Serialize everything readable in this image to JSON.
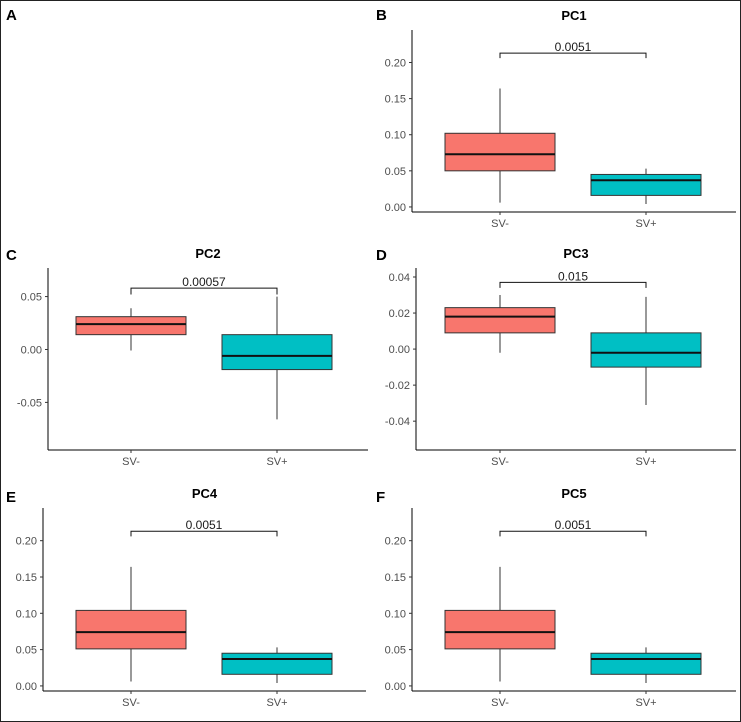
{
  "chart_data": [
    {
      "panel": "A",
      "type": "blank"
    },
    {
      "panel": "B",
      "type": "boxplot",
      "title": "PC1",
      "categories": [
        "SV-",
        "SV+"
      ],
      "ylim": [
        -0.007,
        0.245
      ],
      "yticks": [
        0.0,
        0.05,
        0.1,
        0.15,
        0.2
      ],
      "ytick_labels": [
        "0.00",
        "0.05",
        "0.10",
        "0.15",
        "0.20"
      ],
      "boxes": [
        {
          "category": "SV-",
          "whisker_low": 0.006,
          "q1": 0.05,
          "median": 0.073,
          "q3": 0.102,
          "whisker_high": 0.164,
          "color": "#F8766D"
        },
        {
          "category": "SV+",
          "whisker_low": 0.004,
          "q1": 0.016,
          "median": 0.037,
          "q3": 0.045,
          "whisker_high": 0.053,
          "color": "#00BFC4"
        }
      ],
      "bracket": {
        "label": "0.0051",
        "y": 0.213,
        "tip": 0.206
      }
    },
    {
      "panel": "C",
      "type": "boxplot",
      "title": "PC2",
      "categories": [
        "SV-",
        "SV+"
      ],
      "ylim": [
        -0.095,
        0.077
      ],
      "yticks": [
        -0.05,
        0.0,
        0.05
      ],
      "ytick_labels": [
        "-0.05",
        "0.00",
        "0.05"
      ],
      "boxes": [
        {
          "category": "SV-",
          "whisker_low": -0.001,
          "q1": 0.014,
          "median": 0.024,
          "q3": 0.031,
          "whisker_high": 0.039,
          "color": "#F8766D"
        },
        {
          "category": "SV+",
          "whisker_low": -0.066,
          "q1": -0.019,
          "median": -0.006,
          "q3": 0.014,
          "whisker_high": 0.05,
          "color": "#00BFC4"
        }
      ],
      "bracket": {
        "label": "0.00057",
        "y": 0.058,
        "tip": 0.052
      }
    },
    {
      "panel": "D",
      "type": "boxplot",
      "title": "PC3",
      "categories": [
        "SV-",
        "SV+"
      ],
      "ylim": [
        -0.056,
        0.045
      ],
      "yticks": [
        -0.04,
        -0.02,
        0.0,
        0.02,
        0.04
      ],
      "ytick_labels": [
        "-0.04",
        "-0.02",
        "0.00",
        "0.02",
        "0.04"
      ],
      "boxes": [
        {
          "category": "SV-",
          "whisker_low": -0.002,
          "q1": 0.009,
          "median": 0.018,
          "q3": 0.023,
          "whisker_high": 0.03,
          "color": "#F8766D"
        },
        {
          "category": "SV+",
          "whisker_low": -0.031,
          "q1": -0.01,
          "median": -0.002,
          "q3": 0.009,
          "whisker_high": 0.029,
          "color": "#00BFC4"
        }
      ],
      "bracket": {
        "label": "0.015",
        "y": 0.037,
        "tip": 0.034
      }
    },
    {
      "panel": "E",
      "type": "boxplot",
      "title": "PC4",
      "categories": [
        "SV-",
        "SV+"
      ],
      "ylim": [
        -0.007,
        0.245
      ],
      "yticks": [
        0.0,
        0.05,
        0.1,
        0.15,
        0.2
      ],
      "ytick_labels": [
        "0.00",
        "0.05",
        "0.10",
        "0.15",
        "0.20"
      ],
      "boxes": [
        {
          "category": "SV-",
          "whisker_low": 0.006,
          "q1": 0.051,
          "median": 0.074,
          "q3": 0.104,
          "whisker_high": 0.164,
          "color": "#F8766D"
        },
        {
          "category": "SV+",
          "whisker_low": 0.004,
          "q1": 0.016,
          "median": 0.037,
          "q3": 0.045,
          "whisker_high": 0.053,
          "color": "#00BFC4"
        }
      ],
      "bracket": {
        "label": "0.0051",
        "y": 0.213,
        "tip": 0.206
      }
    },
    {
      "panel": "F",
      "type": "boxplot",
      "title": "PC5",
      "categories": [
        "SV-",
        "SV+"
      ],
      "ylim": [
        -0.007,
        0.245
      ],
      "yticks": [
        0.0,
        0.05,
        0.1,
        0.15,
        0.2
      ],
      "ytick_labels": [
        "0.00",
        "0.05",
        "0.10",
        "0.15",
        "0.20"
      ],
      "boxes": [
        {
          "category": "SV-",
          "whisker_low": 0.006,
          "q1": 0.051,
          "median": 0.074,
          "q3": 0.104,
          "whisker_high": 0.164,
          "color": "#F8766D"
        },
        {
          "category": "SV+",
          "whisker_low": 0.004,
          "q1": 0.016,
          "median": 0.037,
          "q3": 0.045,
          "whisker_high": 0.053,
          "color": "#00BFC4"
        }
      ],
      "bracket": {
        "label": "0.0051",
        "y": 0.213,
        "tip": 0.206
      }
    }
  ]
}
